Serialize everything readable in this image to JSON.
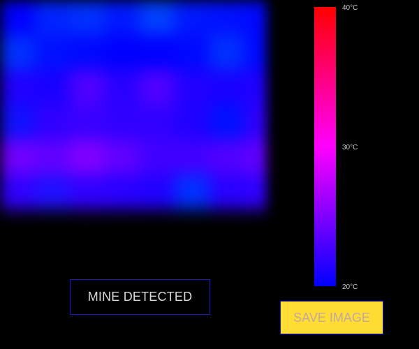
{
  "thermal_view": {
    "colormap": [
      "#0000ff",
      "#ff00ff",
      "#ff0000"
    ],
    "cells": [
      [
        "#0000ff",
        "#0024ff",
        "#0030ff",
        "#0018ff",
        "#0040ff",
        "#0018ff",
        "#0010ff",
        "#0008ff"
      ],
      [
        "#0030ff",
        "#0010ff",
        "#0008ff",
        "#0000ff",
        "#0000ff",
        "#0008ff",
        "#0030ff",
        "#0008ff"
      ],
      [
        "#2000ff",
        "#1800ff",
        "#5000ff",
        "#2800ff",
        "#5000ff",
        "#2000ff",
        "#1800ff",
        "#2000ff"
      ],
      [
        "#1010ff",
        "#3000ff",
        "#3800ff",
        "#3000ff",
        "#3000ff",
        "#2000ff",
        "#0010ff",
        "#3000ff"
      ],
      [
        "#7000ff",
        "#6000ff",
        "#8000ff",
        "#6000ff",
        "#4000ff",
        "#4000ff",
        "#5000ff",
        "#6000ff"
      ],
      [
        "#3000ff",
        "#2010ff",
        "#3000ff",
        "#2800ff",
        "#2000ff",
        "#0030ff",
        "#2800ff",
        "#3000ff"
      ],
      [
        "#000000",
        "#000000",
        "#000000",
        "#000000",
        "#000000",
        "#000000",
        "#000000",
        "#000000"
      ],
      [
        "#000000",
        "#000000",
        "#000000",
        "#000000",
        "#000000",
        "#000000",
        "#000000",
        "#000000"
      ]
    ]
  },
  "temperature_scale": {
    "max_label": "40°C",
    "mid_label": "30°C",
    "min_label": "20°C"
  },
  "status": {
    "label": "MINE DETECTED"
  },
  "actions": {
    "save_label": "SAVE IMAGE"
  }
}
